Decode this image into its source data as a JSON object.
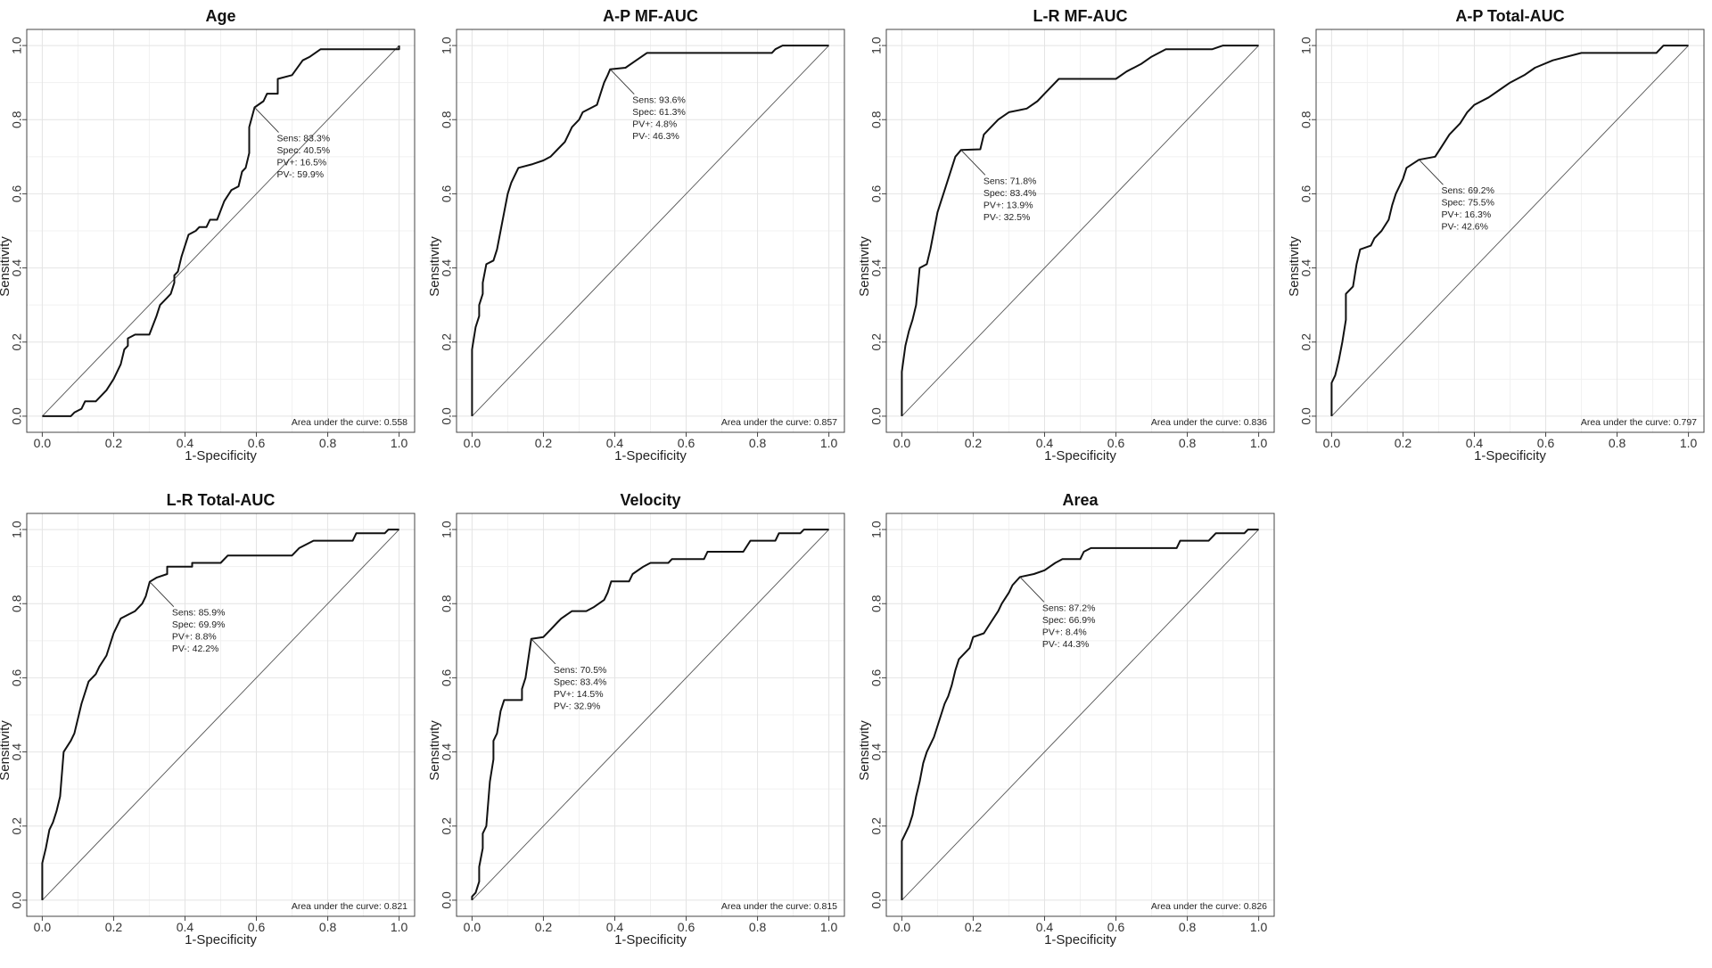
{
  "chart_data": [
    {
      "type": "line",
      "title": "Age",
      "xlabel": "1-Specificity",
      "ylabel": "Sensitivity",
      "xlim": [
        0,
        1
      ],
      "ylim": [
        0,
        1
      ],
      "ticks": [
        "0.0",
        "0.2",
        "0.4",
        "0.6",
        "0.8",
        "1.0"
      ],
      "grid": true,
      "cutoff": {
        "x": 0.595,
        "y": 0.833
      },
      "annotation": [
        "Sens: 83.3%",
        "Spec: 40.5%",
        "PV+: 16.5%",
        "PV-: 59.9%"
      ],
      "auc_label": "Area under the curve: 0.558",
      "curve": [
        [
          0,
          0
        ],
        [
          0.08,
          0
        ],
        [
          0.09,
          0.01
        ],
        [
          0.11,
          0.02
        ],
        [
          0.12,
          0.04
        ],
        [
          0.15,
          0.04
        ],
        [
          0.18,
          0.07
        ],
        [
          0.2,
          0.1
        ],
        [
          0.22,
          0.14
        ],
        [
          0.23,
          0.18
        ],
        [
          0.24,
          0.19
        ],
        [
          0.24,
          0.21
        ],
        [
          0.26,
          0.22
        ],
        [
          0.3,
          0.22
        ],
        [
          0.32,
          0.27
        ],
        [
          0.33,
          0.3
        ],
        [
          0.35,
          0.32
        ],
        [
          0.36,
          0.33
        ],
        [
          0.37,
          0.36
        ],
        [
          0.37,
          0.38
        ],
        [
          0.38,
          0.39
        ],
        [
          0.39,
          0.43
        ],
        [
          0.4,
          0.46
        ],
        [
          0.41,
          0.49
        ],
        [
          0.43,
          0.5
        ],
        [
          0.44,
          0.51
        ],
        [
          0.46,
          0.51
        ],
        [
          0.47,
          0.53
        ],
        [
          0.49,
          0.53
        ],
        [
          0.51,
          0.58
        ],
        [
          0.53,
          0.61
        ],
        [
          0.55,
          0.62
        ],
        [
          0.56,
          0.66
        ],
        [
          0.57,
          0.67
        ],
        [
          0.58,
          0.71
        ],
        [
          0.58,
          0.78
        ],
        [
          0.595,
          0.833
        ],
        [
          0.62,
          0.85
        ],
        [
          0.63,
          0.87
        ],
        [
          0.66,
          0.87
        ],
        [
          0.66,
          0.91
        ],
        [
          0.7,
          0.92
        ],
        [
          0.73,
          0.96
        ],
        [
          0.75,
          0.97
        ],
        [
          0.78,
          0.99
        ],
        [
          1,
          0.99
        ],
        [
          1,
          1
        ]
      ]
    },
    {
      "type": "line",
      "title": "A-P MF-AUC",
      "xlabel": "1-Specificity",
      "ylabel": "Sensitivity",
      "xlim": [
        0,
        1
      ],
      "ylim": [
        0,
        1
      ],
      "ticks": [
        "0.0",
        "0.2",
        "0.4",
        "0.6",
        "0.8",
        "1.0"
      ],
      "grid": true,
      "cutoff": {
        "x": 0.387,
        "y": 0.936
      },
      "annotation": [
        "Sens: 93.6%",
        "Spec: 61.3%",
        "PV+: 4.8%",
        "PV-: 46.3%"
      ],
      "auc_label": "Area under the curve: 0.857",
      "curve": [
        [
          0,
          0
        ],
        [
          0,
          0.18
        ],
        [
          0.01,
          0.24
        ],
        [
          0.02,
          0.27
        ],
        [
          0.02,
          0.3
        ],
        [
          0.03,
          0.33
        ],
        [
          0.03,
          0.36
        ],
        [
          0.04,
          0.41
        ],
        [
          0.06,
          0.42
        ],
        [
          0.07,
          0.45
        ],
        [
          0.08,
          0.5
        ],
        [
          0.09,
          0.55
        ],
        [
          0.1,
          0.6
        ],
        [
          0.11,
          0.63
        ],
        [
          0.12,
          0.65
        ],
        [
          0.13,
          0.67
        ],
        [
          0.17,
          0.68
        ],
        [
          0.2,
          0.69
        ],
        [
          0.22,
          0.7
        ],
        [
          0.24,
          0.72
        ],
        [
          0.26,
          0.74
        ],
        [
          0.27,
          0.76
        ],
        [
          0.28,
          0.78
        ],
        [
          0.3,
          0.8
        ],
        [
          0.31,
          0.82
        ],
        [
          0.35,
          0.84
        ],
        [
          0.36,
          0.87
        ],
        [
          0.37,
          0.9
        ],
        [
          0.38,
          0.92
        ],
        [
          0.387,
          0.936
        ],
        [
          0.43,
          0.94
        ],
        [
          0.46,
          0.96
        ],
        [
          0.49,
          0.98
        ],
        [
          0.84,
          0.98
        ],
        [
          0.85,
          0.99
        ],
        [
          0.87,
          1
        ],
        [
          1,
          1
        ]
      ]
    },
    {
      "type": "line",
      "title": "L-R MF-AUC",
      "xlabel": "1-Specificity",
      "ylabel": "Sensitivity",
      "xlim": [
        0,
        1
      ],
      "ylim": [
        0,
        1
      ],
      "ticks": [
        "0.0",
        "0.2",
        "0.4",
        "0.6",
        "0.8",
        "1.0"
      ],
      "grid": true,
      "cutoff": {
        "x": 0.166,
        "y": 0.718
      },
      "annotation": [
        "Sens: 71.8%",
        "Spec: 83.4%",
        "PV+: 13.9%",
        "PV-: 32.5%"
      ],
      "auc_label": "Area under the curve: 0.836",
      "curve": [
        [
          0,
          0
        ],
        [
          0,
          0.12
        ],
        [
          0.01,
          0.19
        ],
        [
          0.02,
          0.23
        ],
        [
          0.03,
          0.26
        ],
        [
          0.04,
          0.3
        ],
        [
          0.05,
          0.4
        ],
        [
          0.07,
          0.41
        ],
        [
          0.08,
          0.45
        ],
        [
          0.09,
          0.5
        ],
        [
          0.1,
          0.55
        ],
        [
          0.11,
          0.58
        ],
        [
          0.12,
          0.61
        ],
        [
          0.13,
          0.64
        ],
        [
          0.14,
          0.67
        ],
        [
          0.15,
          0.7
        ],
        [
          0.166,
          0.718
        ],
        [
          0.22,
          0.72
        ],
        [
          0.23,
          0.76
        ],
        [
          0.25,
          0.78
        ],
        [
          0.27,
          0.8
        ],
        [
          0.3,
          0.82
        ],
        [
          0.35,
          0.83
        ],
        [
          0.38,
          0.85
        ],
        [
          0.4,
          0.87
        ],
        [
          0.42,
          0.89
        ],
        [
          0.44,
          0.91
        ],
        [
          0.6,
          0.91
        ],
        [
          0.63,
          0.93
        ],
        [
          0.67,
          0.95
        ],
        [
          0.7,
          0.97
        ],
        [
          0.74,
          0.99
        ],
        [
          0.87,
          0.99
        ],
        [
          0.9,
          1
        ],
        [
          1,
          1
        ]
      ]
    },
    {
      "type": "line",
      "title": "A-P Total-AUC",
      "xlabel": "1-Specificity",
      "ylabel": "Sensitivity",
      "xlim": [
        0,
        1
      ],
      "ylim": [
        0,
        1
      ],
      "ticks": [
        "0.0",
        "0.2",
        "0.4",
        "0.6",
        "0.8",
        "1.0"
      ],
      "grid": true,
      "cutoff": {
        "x": 0.245,
        "y": 0.692
      },
      "annotation": [
        "Sens: 69.2%",
        "Spec: 75.5%",
        "PV+: 16.3%",
        "PV-: 42.6%"
      ],
      "auc_label": "Area under the curve: 0.797",
      "curve": [
        [
          0,
          0
        ],
        [
          0,
          0.09
        ],
        [
          0.01,
          0.11
        ],
        [
          0.02,
          0.15
        ],
        [
          0.03,
          0.2
        ],
        [
          0.04,
          0.26
        ],
        [
          0.04,
          0.33
        ],
        [
          0.06,
          0.35
        ],
        [
          0.07,
          0.41
        ],
        [
          0.08,
          0.45
        ],
        [
          0.11,
          0.46
        ],
        [
          0.12,
          0.48
        ],
        [
          0.14,
          0.5
        ],
        [
          0.16,
          0.53
        ],
        [
          0.17,
          0.57
        ],
        [
          0.18,
          0.6
        ],
        [
          0.2,
          0.64
        ],
        [
          0.21,
          0.67
        ],
        [
          0.245,
          0.692
        ],
        [
          0.29,
          0.7
        ],
        [
          0.31,
          0.73
        ],
        [
          0.33,
          0.76
        ],
        [
          0.36,
          0.79
        ],
        [
          0.38,
          0.82
        ],
        [
          0.4,
          0.84
        ],
        [
          0.44,
          0.86
        ],
        [
          0.47,
          0.88
        ],
        [
          0.5,
          0.9
        ],
        [
          0.54,
          0.92
        ],
        [
          0.57,
          0.94
        ],
        [
          0.62,
          0.96
        ],
        [
          0.7,
          0.98
        ],
        [
          0.91,
          0.98
        ],
        [
          0.93,
          1
        ],
        [
          1,
          1
        ]
      ]
    },
    {
      "type": "line",
      "title": "L-R Total-AUC",
      "xlabel": "1-Specificity",
      "ylabel": "Sensitivity",
      "xlim": [
        0,
        1
      ],
      "ylim": [
        0,
        1
      ],
      "ticks": [
        "0.0",
        "0.2",
        "0.4",
        "0.6",
        "0.8",
        "1.0"
      ],
      "grid": true,
      "cutoff": {
        "x": 0.301,
        "y": 0.859
      },
      "annotation": [
        "Sens: 85.9%",
        "Spec: 69.9%",
        "PV+: 8.8%",
        "PV-: 42.2%"
      ],
      "auc_label": "Area under the curve: 0.821",
      "curve": [
        [
          0,
          0
        ],
        [
          0,
          0.1
        ],
        [
          0.01,
          0.14
        ],
        [
          0.02,
          0.19
        ],
        [
          0.03,
          0.21
        ],
        [
          0.04,
          0.24
        ],
        [
          0.05,
          0.28
        ],
        [
          0.06,
          0.4
        ],
        [
          0.08,
          0.43
        ],
        [
          0.09,
          0.45
        ],
        [
          0.1,
          0.49
        ],
        [
          0.11,
          0.53
        ],
        [
          0.12,
          0.56
        ],
        [
          0.13,
          0.59
        ],
        [
          0.15,
          0.61
        ],
        [
          0.16,
          0.63
        ],
        [
          0.18,
          0.66
        ],
        [
          0.19,
          0.69
        ],
        [
          0.2,
          0.72
        ],
        [
          0.21,
          0.74
        ],
        [
          0.22,
          0.76
        ],
        [
          0.24,
          0.77
        ],
        [
          0.26,
          0.78
        ],
        [
          0.28,
          0.8
        ],
        [
          0.29,
          0.82
        ],
        [
          0.301,
          0.859
        ],
        [
          0.32,
          0.87
        ],
        [
          0.35,
          0.88
        ],
        [
          0.35,
          0.9
        ],
        [
          0.42,
          0.9
        ],
        [
          0.42,
          0.91
        ],
        [
          0.5,
          0.91
        ],
        [
          0.52,
          0.93
        ],
        [
          0.7,
          0.93
        ],
        [
          0.72,
          0.95
        ],
        [
          0.76,
          0.97
        ],
        [
          0.87,
          0.97
        ],
        [
          0.88,
          0.99
        ],
        [
          0.96,
          0.99
        ],
        [
          0.97,
          1
        ],
        [
          1,
          1
        ]
      ]
    },
    {
      "type": "line",
      "title": "Velocity",
      "xlabel": "1-Specificity",
      "ylabel": "Sensitivity",
      "xlim": [
        0,
        1
      ],
      "ylim": [
        0,
        1
      ],
      "ticks": [
        "0.0",
        "0.2",
        "0.4",
        "0.6",
        "0.8",
        "1.0"
      ],
      "grid": true,
      "cutoff": {
        "x": 0.166,
        "y": 0.705
      },
      "annotation": [
        "Sens: 70.5%",
        "Spec: 83.4%",
        "PV+: 14.5%",
        "PV-: 32.9%"
      ],
      "auc_label": "Area under the curve: 0.815",
      "curve": [
        [
          0,
          0
        ],
        [
          0,
          0.01
        ],
        [
          0.01,
          0.02
        ],
        [
          0.02,
          0.05
        ],
        [
          0.02,
          0.09
        ],
        [
          0.03,
          0.14
        ],
        [
          0.03,
          0.18
        ],
        [
          0.04,
          0.2
        ],
        [
          0.05,
          0.32
        ],
        [
          0.06,
          0.38
        ],
        [
          0.06,
          0.43
        ],
        [
          0.07,
          0.45
        ],
        [
          0.08,
          0.51
        ],
        [
          0.09,
          0.54
        ],
        [
          0.14,
          0.54
        ],
        [
          0.14,
          0.57
        ],
        [
          0.15,
          0.6
        ],
        [
          0.166,
          0.705
        ],
        [
          0.2,
          0.71
        ],
        [
          0.22,
          0.73
        ],
        [
          0.24,
          0.75
        ],
        [
          0.25,
          0.76
        ],
        [
          0.28,
          0.78
        ],
        [
          0.32,
          0.78
        ],
        [
          0.34,
          0.79
        ],
        [
          0.37,
          0.81
        ],
        [
          0.38,
          0.83
        ],
        [
          0.39,
          0.86
        ],
        [
          0.44,
          0.86
        ],
        [
          0.45,
          0.88
        ],
        [
          0.48,
          0.9
        ],
        [
          0.5,
          0.91
        ],
        [
          0.55,
          0.91
        ],
        [
          0.56,
          0.92
        ],
        [
          0.65,
          0.92
        ],
        [
          0.66,
          0.94
        ],
        [
          0.76,
          0.94
        ],
        [
          0.78,
          0.97
        ],
        [
          0.85,
          0.97
        ],
        [
          0.86,
          0.99
        ],
        [
          0.92,
          0.99
        ],
        [
          0.93,
          1
        ],
        [
          1,
          1
        ]
      ]
    },
    {
      "type": "line",
      "title": "Area",
      "xlabel": "1-Specificity",
      "ylabel": "Sensitivity",
      "xlim": [
        0,
        1
      ],
      "ylim": [
        0,
        1
      ],
      "ticks": [
        "0.0",
        "0.2",
        "0.4",
        "0.6",
        "0.8",
        "1.0"
      ],
      "grid": true,
      "cutoff": {
        "x": 0.331,
        "y": 0.872
      },
      "annotation": [
        "Sens: 87.2%",
        "Spec: 66.9%",
        "PV+: 8.4%",
        "PV-: 44.3%"
      ],
      "auc_label": "Area under the curve: 0.826",
      "curve": [
        [
          0,
          0
        ],
        [
          0,
          0.16
        ],
        [
          0.02,
          0.2
        ],
        [
          0.03,
          0.23
        ],
        [
          0.04,
          0.28
        ],
        [
          0.05,
          0.32
        ],
        [
          0.06,
          0.37
        ],
        [
          0.07,
          0.4
        ],
        [
          0.08,
          0.42
        ],
        [
          0.09,
          0.44
        ],
        [
          0.1,
          0.47
        ],
        [
          0.11,
          0.5
        ],
        [
          0.12,
          0.53
        ],
        [
          0.13,
          0.55
        ],
        [
          0.14,
          0.58
        ],
        [
          0.15,
          0.62
        ],
        [
          0.16,
          0.65
        ],
        [
          0.19,
          0.68
        ],
        [
          0.2,
          0.71
        ],
        [
          0.23,
          0.72
        ],
        [
          0.25,
          0.75
        ],
        [
          0.27,
          0.78
        ],
        [
          0.28,
          0.8
        ],
        [
          0.3,
          0.83
        ],
        [
          0.31,
          0.85
        ],
        [
          0.331,
          0.872
        ],
        [
          0.37,
          0.88
        ],
        [
          0.4,
          0.89
        ],
        [
          0.43,
          0.91
        ],
        [
          0.45,
          0.92
        ],
        [
          0.5,
          0.92
        ],
        [
          0.51,
          0.94
        ],
        [
          0.53,
          0.95
        ],
        [
          0.77,
          0.95
        ],
        [
          0.78,
          0.97
        ],
        [
          0.86,
          0.97
        ],
        [
          0.88,
          0.99
        ],
        [
          0.96,
          0.99
        ],
        [
          0.97,
          1
        ],
        [
          1,
          1
        ]
      ]
    }
  ]
}
